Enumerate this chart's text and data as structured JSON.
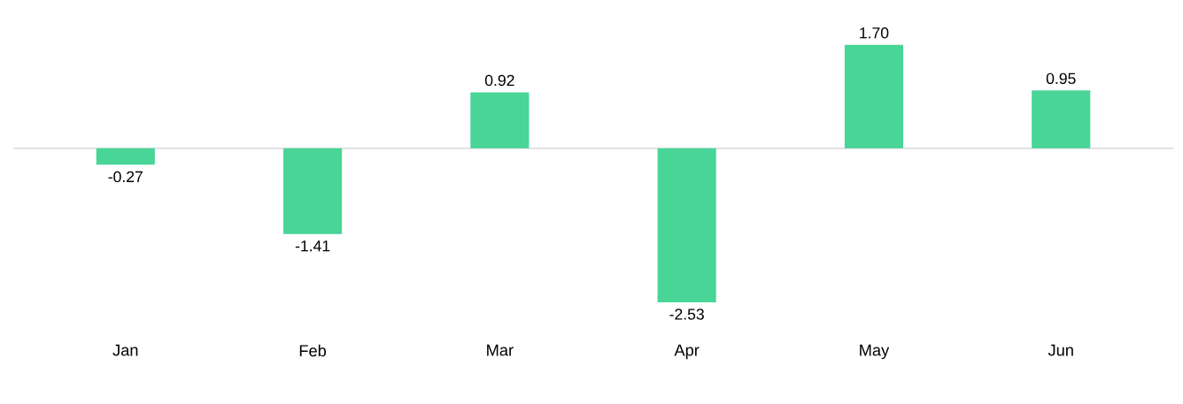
{
  "chart_data": {
    "type": "bar",
    "categories": [
      "Jan",
      "Feb",
      "Mar",
      "Apr",
      "May",
      "Jun"
    ],
    "values": [
      -0.27,
      -1.41,
      0.92,
      -2.53,
      1.7,
      0.95
    ],
    "value_labels": [
      "-0.27",
      "-1.41",
      "0.92",
      "-2.53",
      "1.70",
      "0.95"
    ],
    "color": "#48d597"
  }
}
